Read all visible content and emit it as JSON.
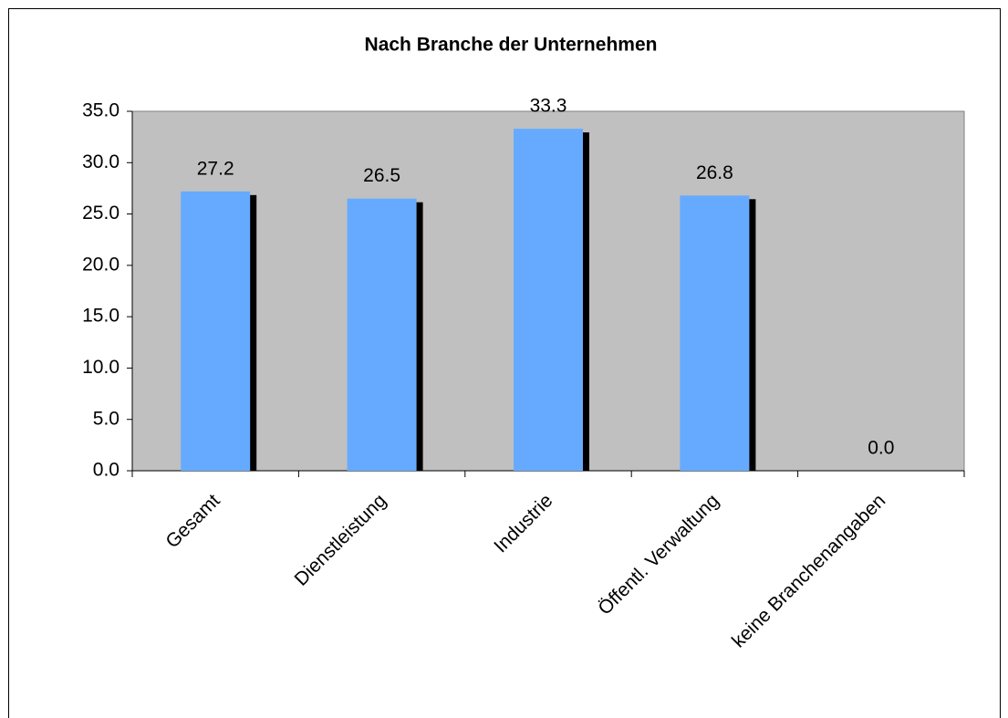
{
  "chart_data": {
    "type": "bar",
    "title": "Nach Branche der Unternehmen",
    "categories": [
      "Gesamt",
      "Dienstleistung",
      "Industrie",
      "Öffentl. Verwaltung",
      "keine Branchenangaben"
    ],
    "values": [
      27.2,
      26.5,
      33.3,
      26.8,
      0
    ],
    "value_labels": [
      "27.2",
      "26.5",
      "33.3",
      "26.8",
      "0.0"
    ],
    "color": "#66aaff",
    "ylim": [
      0,
      35
    ],
    "yticks": [
      {
        "value": 0,
        "label": "0.0"
      },
      {
        "value": 5,
        "label": "5.0"
      },
      {
        "value": 10,
        "label": "10.0"
      },
      {
        "value": 15,
        "label": "15.0"
      },
      {
        "value": 20,
        "label": "20.0"
      },
      {
        "value": 25,
        "label": "25.0"
      },
      {
        "value": 30,
        "label": "30.0"
      },
      {
        "value": 35,
        "label": "35.0"
      }
    ],
    "grid": false
  }
}
